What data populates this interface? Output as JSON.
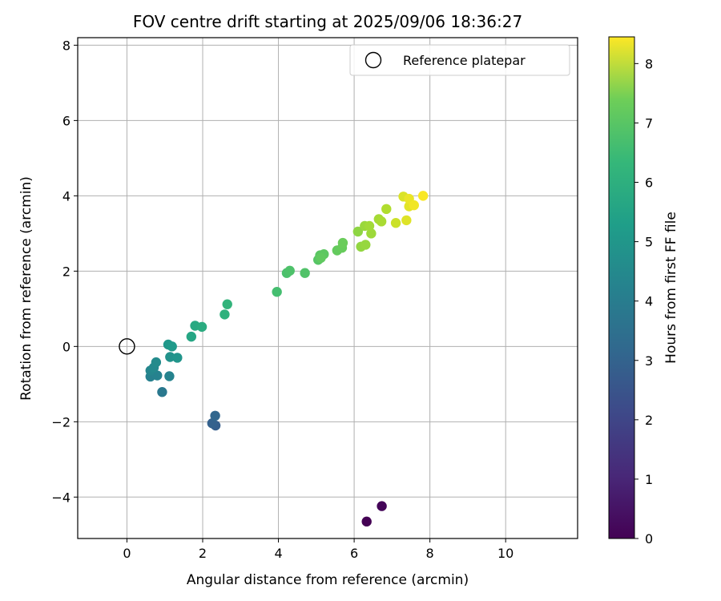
{
  "chart_data": {
    "type": "scatter",
    "title": "FOV centre drift starting at 2025/09/06 18:36:27",
    "xlabel": "Angular distance from reference (arcmin)",
    "ylabel": "Rotation from reference (arcmin)",
    "xlim": [
      -1.3,
      11.9
    ],
    "ylim": [
      -5.1,
      8.2
    ],
    "xticks": [
      0,
      2,
      4,
      6,
      8,
      10
    ],
    "yticks": [
      -4,
      -2,
      0,
      2,
      4,
      6,
      8
    ],
    "grid": true,
    "legend": {
      "placement": "top-right",
      "entries": [
        "Reference platepar"
      ]
    },
    "reference_point": {
      "x": 0,
      "y": 0,
      "label": "Reference platepar"
    },
    "colorbar": {
      "label": "Hours from first FF file",
      "colormap": "viridis",
      "range": [
        0,
        8.45
      ],
      "ticks": [
        0,
        1,
        2,
        3,
        4,
        5,
        6,
        7,
        8
      ]
    },
    "points": [
      {
        "x": 6.33,
        "y": -4.65,
        "h": 0.0
      },
      {
        "x": 6.73,
        "y": -4.24,
        "h": 0.1
      },
      {
        "x": 2.34,
        "y": -2.1,
        "h": 2.5
      },
      {
        "x": 2.25,
        "y": -2.04,
        "h": 2.6
      },
      {
        "x": 2.33,
        "y": -1.84,
        "h": 2.8
      },
      {
        "x": 0.93,
        "y": -1.21,
        "h": 3.4
      },
      {
        "x": 0.62,
        "y": -0.8,
        "h": 3.7
      },
      {
        "x": 0.8,
        "y": -0.77,
        "h": 3.75
      },
      {
        "x": 1.12,
        "y": -0.79,
        "h": 3.8
      },
      {
        "x": 0.62,
        "y": -0.64,
        "h": 3.9
      },
      {
        "x": 0.71,
        "y": -0.56,
        "h": 4.0
      },
      {
        "x": 0.77,
        "y": -0.42,
        "h": 4.05
      },
      {
        "x": 1.14,
        "y": -0.28,
        "h": 4.3
      },
      {
        "x": 1.33,
        "y": -0.3,
        "h": 4.4
      },
      {
        "x": 1.09,
        "y": 0.05,
        "h": 4.5
      },
      {
        "x": 1.19,
        "y": 0.0,
        "h": 4.55
      },
      {
        "x": 1.7,
        "y": 0.26,
        "h": 5.0
      },
      {
        "x": 1.8,
        "y": 0.55,
        "h": 5.1
      },
      {
        "x": 1.98,
        "y": 0.52,
        "h": 5.2
      },
      {
        "x": 2.58,
        "y": 0.85,
        "h": 5.4
      },
      {
        "x": 2.65,
        "y": 1.12,
        "h": 5.5
      },
      {
        "x": 3.96,
        "y": 1.45,
        "h": 5.9
      },
      {
        "x": 4.22,
        "y": 1.95,
        "h": 6.0
      },
      {
        "x": 4.3,
        "y": 2.01,
        "h": 6.05
      },
      {
        "x": 4.7,
        "y": 1.95,
        "h": 6.1
      },
      {
        "x": 5.05,
        "y": 2.3,
        "h": 6.2
      },
      {
        "x": 5.1,
        "y": 2.42,
        "h": 6.25
      },
      {
        "x": 5.2,
        "y": 2.45,
        "h": 6.3
      },
      {
        "x": 5.12,
        "y": 2.35,
        "h": 6.35
      },
      {
        "x": 5.55,
        "y": 2.55,
        "h": 6.4
      },
      {
        "x": 5.68,
        "y": 2.62,
        "h": 6.45
      },
      {
        "x": 5.7,
        "y": 2.75,
        "h": 6.5
      },
      {
        "x": 6.1,
        "y": 3.05,
        "h": 7.0
      },
      {
        "x": 6.18,
        "y": 2.65,
        "h": 7.05
      },
      {
        "x": 6.3,
        "y": 2.7,
        "h": 7.1
      },
      {
        "x": 6.28,
        "y": 3.2,
        "h": 7.15
      },
      {
        "x": 6.45,
        "y": 3.0,
        "h": 7.2
      },
      {
        "x": 6.4,
        "y": 3.2,
        "h": 7.25
      },
      {
        "x": 6.65,
        "y": 3.38,
        "h": 7.3
      },
      {
        "x": 6.72,
        "y": 3.32,
        "h": 7.35
      },
      {
        "x": 6.85,
        "y": 3.65,
        "h": 7.45
      },
      {
        "x": 7.1,
        "y": 3.28,
        "h": 7.8
      },
      {
        "x": 7.3,
        "y": 3.98,
        "h": 8.0
      },
      {
        "x": 7.38,
        "y": 3.35,
        "h": 8.05
      },
      {
        "x": 7.45,
        "y": 3.72,
        "h": 8.1
      },
      {
        "x": 7.45,
        "y": 3.92,
        "h": 8.2
      },
      {
        "x": 7.58,
        "y": 3.75,
        "h": 8.3
      },
      {
        "x": 7.82,
        "y": 4.0,
        "h": 8.4
      }
    ]
  }
}
